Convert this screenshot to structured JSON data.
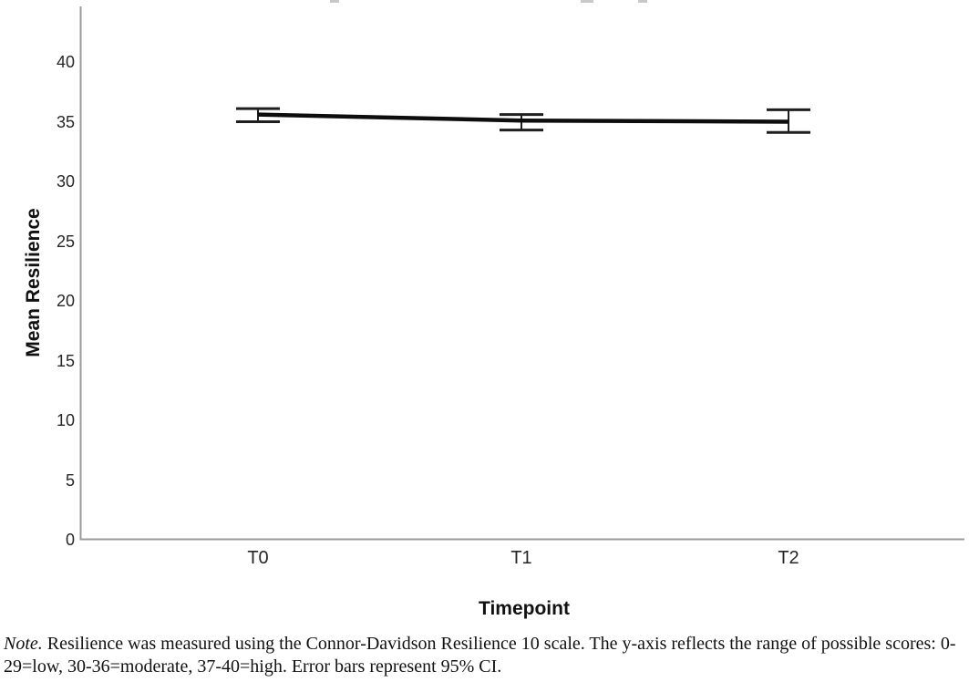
{
  "figure": {
    "note": {
      "lead": "Note.",
      "body": " Resilience was measured using the Connor-Davidson Resilience 10 scale. The y-axis reflects the range of possible scores: 0-29=low, 30-36=moderate, 37-40=high. Error bars represent 95% CI."
    }
  },
  "chart_data": {
    "type": "line",
    "title": "",
    "categories": [
      "T0",
      "T1",
      "T2"
    ],
    "series": [
      {
        "name": "Mean Resilience",
        "values": [
          35.6,
          35.1,
          35.0
        ],
        "ci_low": [
          35.0,
          34.3,
          34.1
        ],
        "ci_high": [
          36.1,
          35.6,
          36.0
        ]
      }
    ],
    "xlabel": "Timepoint",
    "ylabel": "Mean Resilience",
    "yticks": [
      0,
      5,
      10,
      15,
      20,
      25,
      30,
      35,
      40
    ],
    "ylim": [
      0,
      44.6
    ],
    "error_bars": "95% CI",
    "legend": "none",
    "grid": false,
    "colors": {
      "line": "#0d0d0d",
      "error_bar": "#1f1f1f",
      "axis": "#9b9b9b",
      "text": "#1a1a1a",
      "background": "#ffffff"
    }
  }
}
